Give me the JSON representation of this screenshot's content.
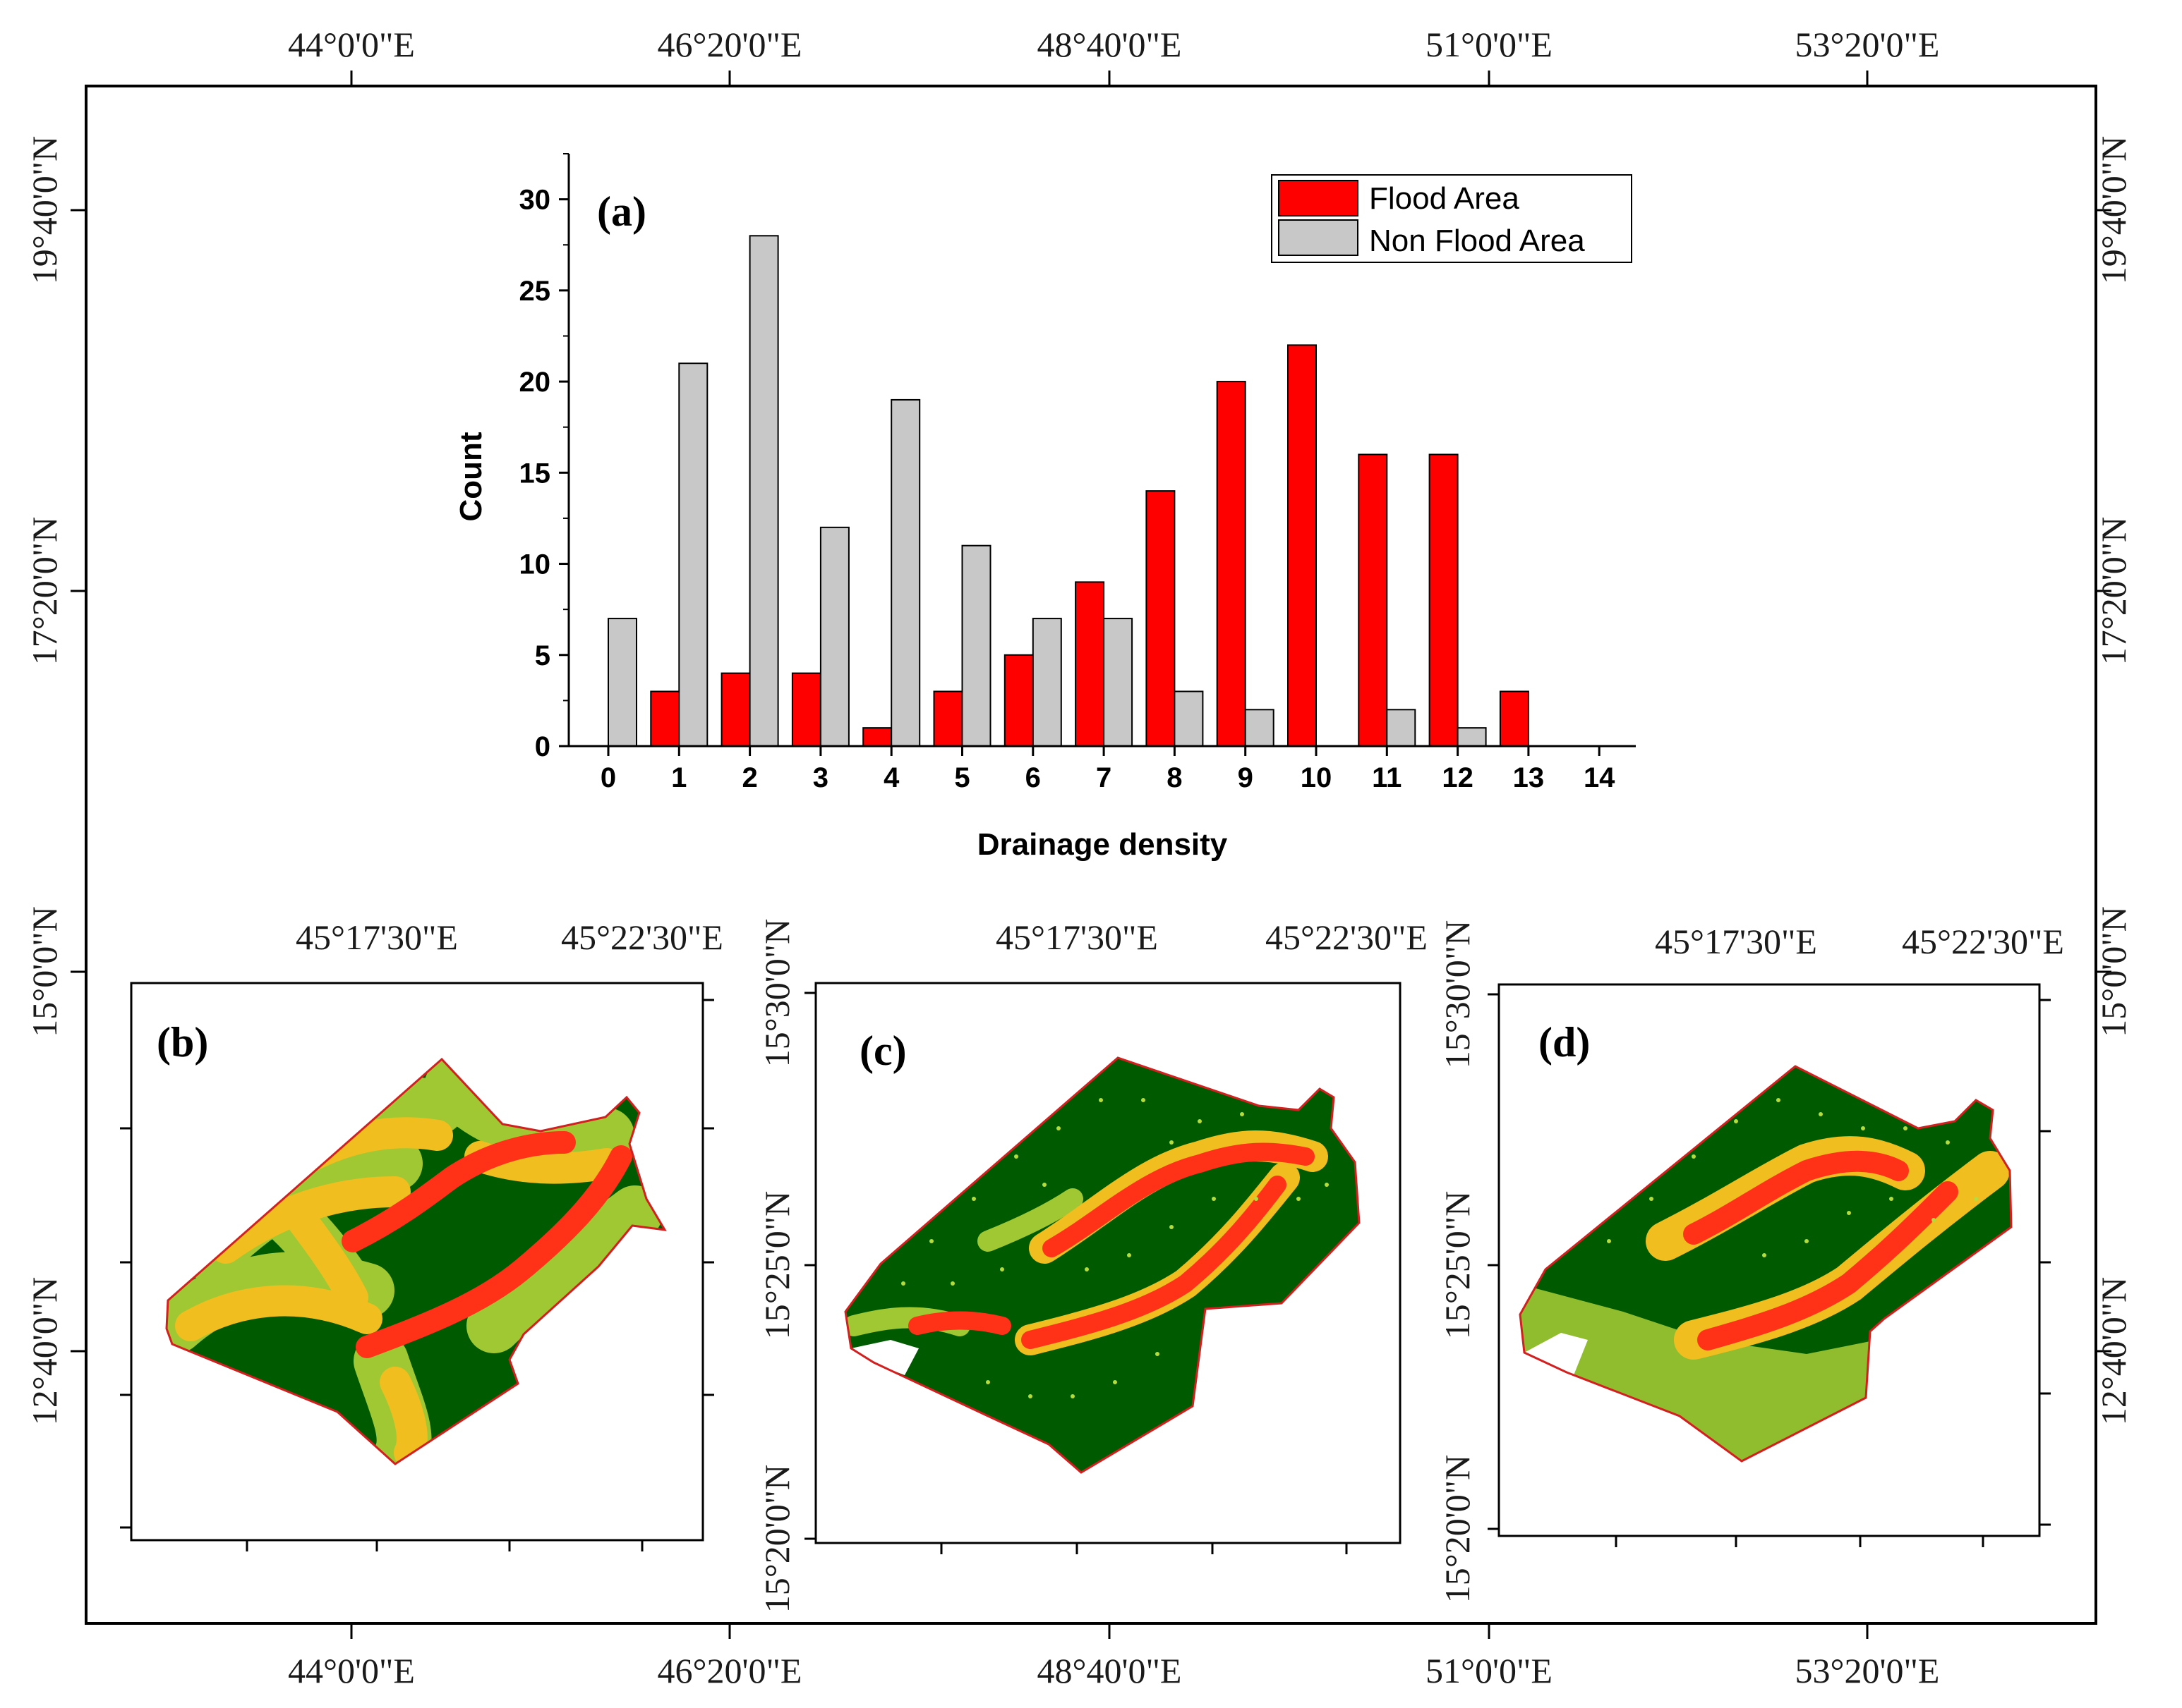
{
  "outer_frame": {
    "top_lon_labels": [
      "44°0'0\"E",
      "46°20'0\"E",
      "48°40'0\"E",
      "51°0'0\"E",
      "53°20'0\"E"
    ],
    "bottom_lon_labels": [
      "44°0'0\"E",
      "46°20'0\"E",
      "48°40'0\"E",
      "51°0'0\"E",
      "53°20'0\"E"
    ],
    "left_lat_labels": [
      "19°40'0\"N",
      "17°20'0\"N",
      "15°0'0\"N",
      "12°40'0\"N"
    ],
    "right_lat_labels": [
      "19°40'0\"N",
      "17°20'0\"N",
      "15°0'0\"N",
      "12°40'0\"N"
    ]
  },
  "chart_data": {
    "type": "bar",
    "panel_label": "(a)",
    "title": "",
    "xlabel": "Drainage density",
    "ylabel": "Count",
    "categories": [
      "0",
      "1",
      "2",
      "3",
      "4",
      "5",
      "6",
      "7",
      "8",
      "9",
      "10",
      "11",
      "12",
      "13",
      "14"
    ],
    "yticks": [
      "0",
      "5",
      "10",
      "15",
      "20",
      "25",
      "30"
    ],
    "ylim": [
      0,
      32.5
    ],
    "series": [
      {
        "name": "Flood Area",
        "color": "#ff0000",
        "values": [
          0,
          3,
          4,
          4,
          1,
          3,
          5,
          9,
          14,
          20,
          22,
          16,
          16,
          3,
          0
        ]
      },
      {
        "name": "Non Flood Area",
        "color": "#c8c8c8",
        "values": [
          7,
          21,
          28,
          12,
          19,
          11,
          7,
          7,
          3,
          2,
          0,
          2,
          1,
          0,
          0
        ]
      }
    ],
    "legend": [
      "Flood Area",
      "Non Flood Area"
    ],
    "legend_position": "top-right"
  },
  "maps": [
    {
      "label": "(b)",
      "top_lon_labels": [
        "45°17'30\"E",
        "45°22'30\"E"
      ],
      "left_lat_labels": [],
      "palette": [
        "#005a00",
        "#a0c832",
        "#f0be1e",
        "#ff3218"
      ]
    },
    {
      "label": "(c)",
      "top_lon_labels": [
        "45°17'30\"E",
        "45°22'30\"E"
      ],
      "left_lat_labels": [
        "15°30'0\"N",
        "15°25'0\"N",
        "15°20'0\"N"
      ],
      "palette": [
        "#005a00",
        "#a0c832",
        "#f0be1e",
        "#ff3218"
      ]
    },
    {
      "label": "(d)",
      "top_lon_labels": [
        "45°17'30\"E",
        "45°22'30\"E"
      ],
      "left_lat_labels": [
        "15°30'0\"N",
        "15°25'0\"N",
        "15°20'0\"N"
      ],
      "palette": [
        "#005a00",
        "#a0c832",
        "#f0be1e",
        "#ff3218"
      ]
    }
  ]
}
